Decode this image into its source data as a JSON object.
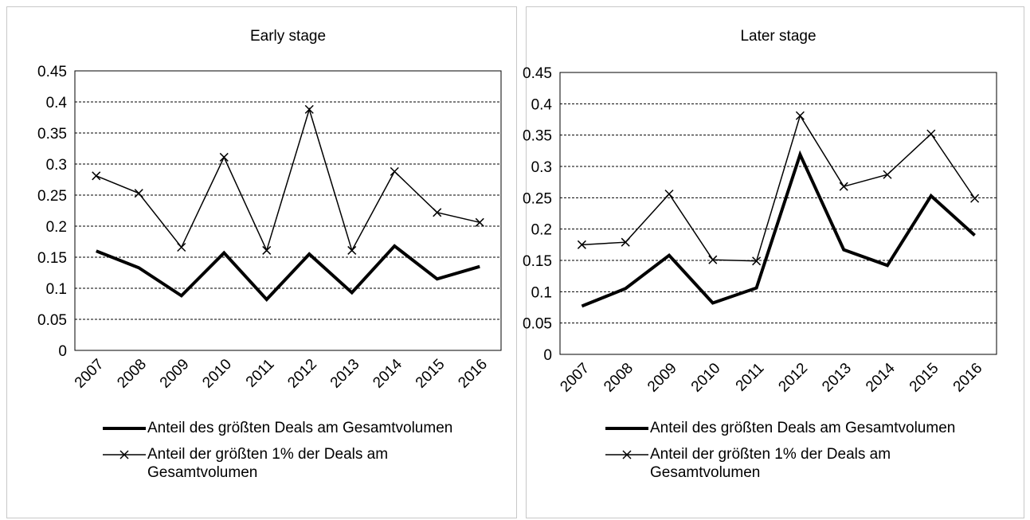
{
  "chart_data": [
    {
      "type": "line",
      "title": "Early stage",
      "categories": [
        "2007",
        "2008",
        "2009",
        "2010",
        "2011",
        "2012",
        "2013",
        "2014",
        "2015",
        "2016"
      ],
      "series": [
        {
          "name": "Anteil des größten Deals am Gesamtvolumen",
          "color": "#000000",
          "values": [
            0.16,
            0.133,
            0.088,
            0.157,
            0.082,
            0.155,
            0.093,
            0.168,
            0.115,
            0.135
          ]
        },
        {
          "name": "Anteil der größten 1% der Deals am Gesamtvolumen",
          "color": "#000000",
          "marker": "x",
          "values": [
            0.281,
            0.253,
            0.166,
            0.311,
            0.161,
            0.388,
            0.161,
            0.288,
            0.222,
            0.206
          ]
        }
      ],
      "ylim": [
        0,
        0.45
      ],
      "yticks": [
        0,
        0.05,
        0.1,
        0.15,
        0.2,
        0.25,
        0.3,
        0.35,
        0.4,
        0.45
      ],
      "grid": true
    },
    {
      "type": "line",
      "title": "Later stage",
      "categories": [
        "2007",
        "2008",
        "2009",
        "2010",
        "2011",
        "2012",
        "2013",
        "2014",
        "2015",
        "2016"
      ],
      "series": [
        {
          "name": "Anteil des größten Deals am Gesamtvolumen",
          "color": "#000000",
          "values": [
            0.077,
            0.105,
            0.158,
            0.082,
            0.106,
            0.319,
            0.167,
            0.142,
            0.253,
            0.19
          ]
        },
        {
          "name": "Anteil der größten 1% der Deals am Gesamtvolumen",
          "color": "#000000",
          "marker": "x",
          "values": [
            0.175,
            0.179,
            0.256,
            0.151,
            0.149,
            0.381,
            0.268,
            0.287,
            0.352,
            0.249
          ]
        }
      ],
      "ylim": [
        0,
        0.45
      ],
      "yticks": [
        0,
        0.05,
        0.1,
        0.15,
        0.2,
        0.25,
        0.3,
        0.35,
        0.4,
        0.45
      ],
      "grid": true
    }
  ]
}
